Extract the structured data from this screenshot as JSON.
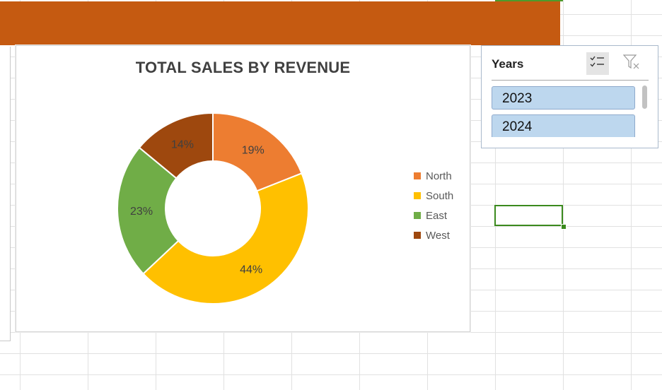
{
  "colors": {
    "banner": "#c55a11",
    "north": "#ed7d31",
    "south": "#ffc000",
    "east": "#70ad47",
    "west": "#9e480e",
    "slicer_item": "#bdd7ee",
    "active_cell": "#3b8a1e"
  },
  "chart_data": {
    "type": "pie",
    "variant": "donut",
    "title": "TOTAL  SALES BY REVENUE",
    "categories": [
      "North",
      "South",
      "East",
      "West"
    ],
    "values": [
      19,
      44,
      23,
      14
    ],
    "labels": [
      "19%",
      "44%",
      "23%",
      "14%"
    ],
    "unit": "%",
    "legend_position": "right"
  },
  "slicer": {
    "title": "Years",
    "multi_select_icon": "multi-select-icon",
    "clear_filter_icon": "clear-filter-icon",
    "items": [
      {
        "label": "2023",
        "selected": true
      },
      {
        "label": "2024",
        "selected": true
      }
    ]
  }
}
